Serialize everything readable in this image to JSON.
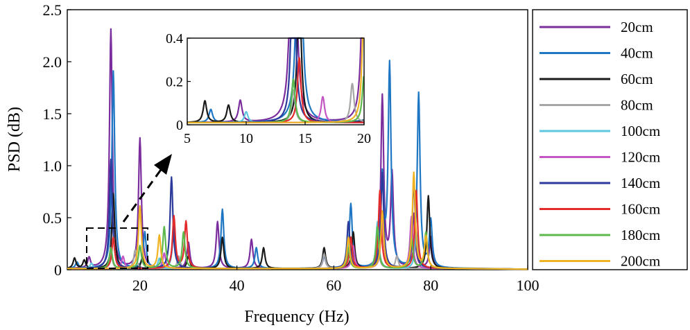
{
  "chart_data": {
    "type": "line",
    "title": "",
    "xlabel": "Frequency (Hz)",
    "ylabel": "PSD (dB)",
    "xlim": [
      5,
      100
    ],
    "ylim": [
      0,
      2.5
    ],
    "x_ticks": [
      "20",
      "40",
      "60",
      "80",
      "100"
    ],
    "y_ticks": [
      "0",
      "0.5",
      "1.0",
      "1.5",
      "2.0",
      "2.5"
    ],
    "grid": false,
    "legend_position": "right-outside",
    "series": [
      {
        "name": "20cm",
        "color": "#7B2D9E",
        "peaks": [
          [
            9.5,
            0.1
          ],
          [
            14,
            2.3
          ],
          [
            20,
            1.25
          ],
          [
            30,
            0.25
          ],
          [
            36,
            0.45
          ],
          [
            43,
            0.28
          ],
          [
            58,
            0.12
          ],
          [
            63,
            0.25
          ],
          [
            70,
            1.65
          ],
          [
            72,
            0.9
          ],
          [
            76.5,
            0.52
          ],
          [
            80,
            0.3
          ]
        ]
      },
      {
        "name": "40cm",
        "color": "#1F77C4",
        "peaks": [
          [
            7,
            0.06
          ],
          [
            14.5,
            1.9
          ],
          [
            21,
            0.35
          ],
          [
            27,
            0.42
          ],
          [
            37,
            0.57
          ],
          [
            44,
            0.2
          ],
          [
            58,
            0.12
          ],
          [
            63.5,
            0.62
          ],
          [
            70,
            0.85
          ],
          [
            71.5,
            1.95
          ],
          [
            77.5,
            1.68
          ],
          [
            80,
            0.45
          ]
        ]
      },
      {
        "name": "60cm",
        "color": "#1A1A1A",
        "peaks": [
          [
            6.5,
            0.1
          ],
          [
            8.5,
            0.08
          ],
          [
            14.5,
            0.72
          ],
          [
            20.5,
            0.1
          ],
          [
            30,
            0.12
          ],
          [
            37,
            0.3
          ],
          [
            45.5,
            0.2
          ],
          [
            58,
            0.2
          ],
          [
            64,
            0.35
          ],
          [
            70,
            0.55
          ],
          [
            79.5,
            0.7
          ]
        ]
      },
      {
        "name": "80cm",
        "color": "#A6A6A6",
        "peaks": [
          [
            14,
            0.15
          ],
          [
            19,
            0.18
          ],
          [
            28,
            0.12
          ],
          [
            58,
            0.14
          ],
          [
            63,
            0.2
          ],
          [
            69,
            0.3
          ],
          [
            73,
            0.12
          ]
        ]
      },
      {
        "name": "100cm",
        "color": "#5BC8E0",
        "peaks": [
          [
            10,
            0.05
          ],
          [
            14,
            0.2
          ],
          [
            24,
            0.1
          ],
          [
            63,
            0.25
          ],
          [
            69,
            0.45
          ],
          [
            77,
            0.35
          ]
        ]
      },
      {
        "name": "120cm",
        "color": "#C455C4",
        "peaks": [
          [
            16.5,
            0.12
          ],
          [
            25,
            0.15
          ],
          [
            64,
            0.22
          ],
          [
            70,
            0.5
          ],
          [
            76,
            0.5
          ]
        ]
      },
      {
        "name": "140cm",
        "color": "#2B3A9B",
        "peaks": [
          [
            14,
            1.05
          ],
          [
            26.5,
            0.88
          ],
          [
            63,
            0.45
          ],
          [
            70,
            0.92
          ],
          [
            76.5,
            0.85
          ]
        ]
      },
      {
        "name": "160cm",
        "color": "#E32B2B",
        "peaks": [
          [
            14.5,
            0.3
          ],
          [
            27,
            0.5
          ],
          [
            29.5,
            0.45
          ],
          [
            63.5,
            0.3
          ],
          [
            69.5,
            0.75
          ],
          [
            77,
            0.75
          ]
        ]
      },
      {
        "name": "180cm",
        "color": "#5CB84A",
        "peaks": [
          [
            14,
            0.2
          ],
          [
            20,
            0.22
          ],
          [
            25,
            0.4
          ],
          [
            29,
            0.35
          ],
          [
            63,
            0.2
          ],
          [
            69,
            0.4
          ],
          [
            76,
            0.3
          ],
          [
            79,
            0.35
          ]
        ]
      },
      {
        "name": "200cm",
        "color": "#F0B323",
        "peaks": [
          [
            20,
            0.6
          ],
          [
            24,
            0.32
          ],
          [
            63,
            0.3
          ],
          [
            70,
            0.55
          ],
          [
            76.5,
            0.92
          ],
          [
            79,
            0.3
          ]
        ]
      }
    ],
    "inset": {
      "xlim": [
        5,
        20
      ],
      "ylim": [
        0,
        0.4
      ],
      "x_ticks": [
        "5",
        "10",
        "15",
        "20"
      ],
      "y_ticks": [
        "0",
        "0.2",
        "0.4"
      ]
    }
  }
}
